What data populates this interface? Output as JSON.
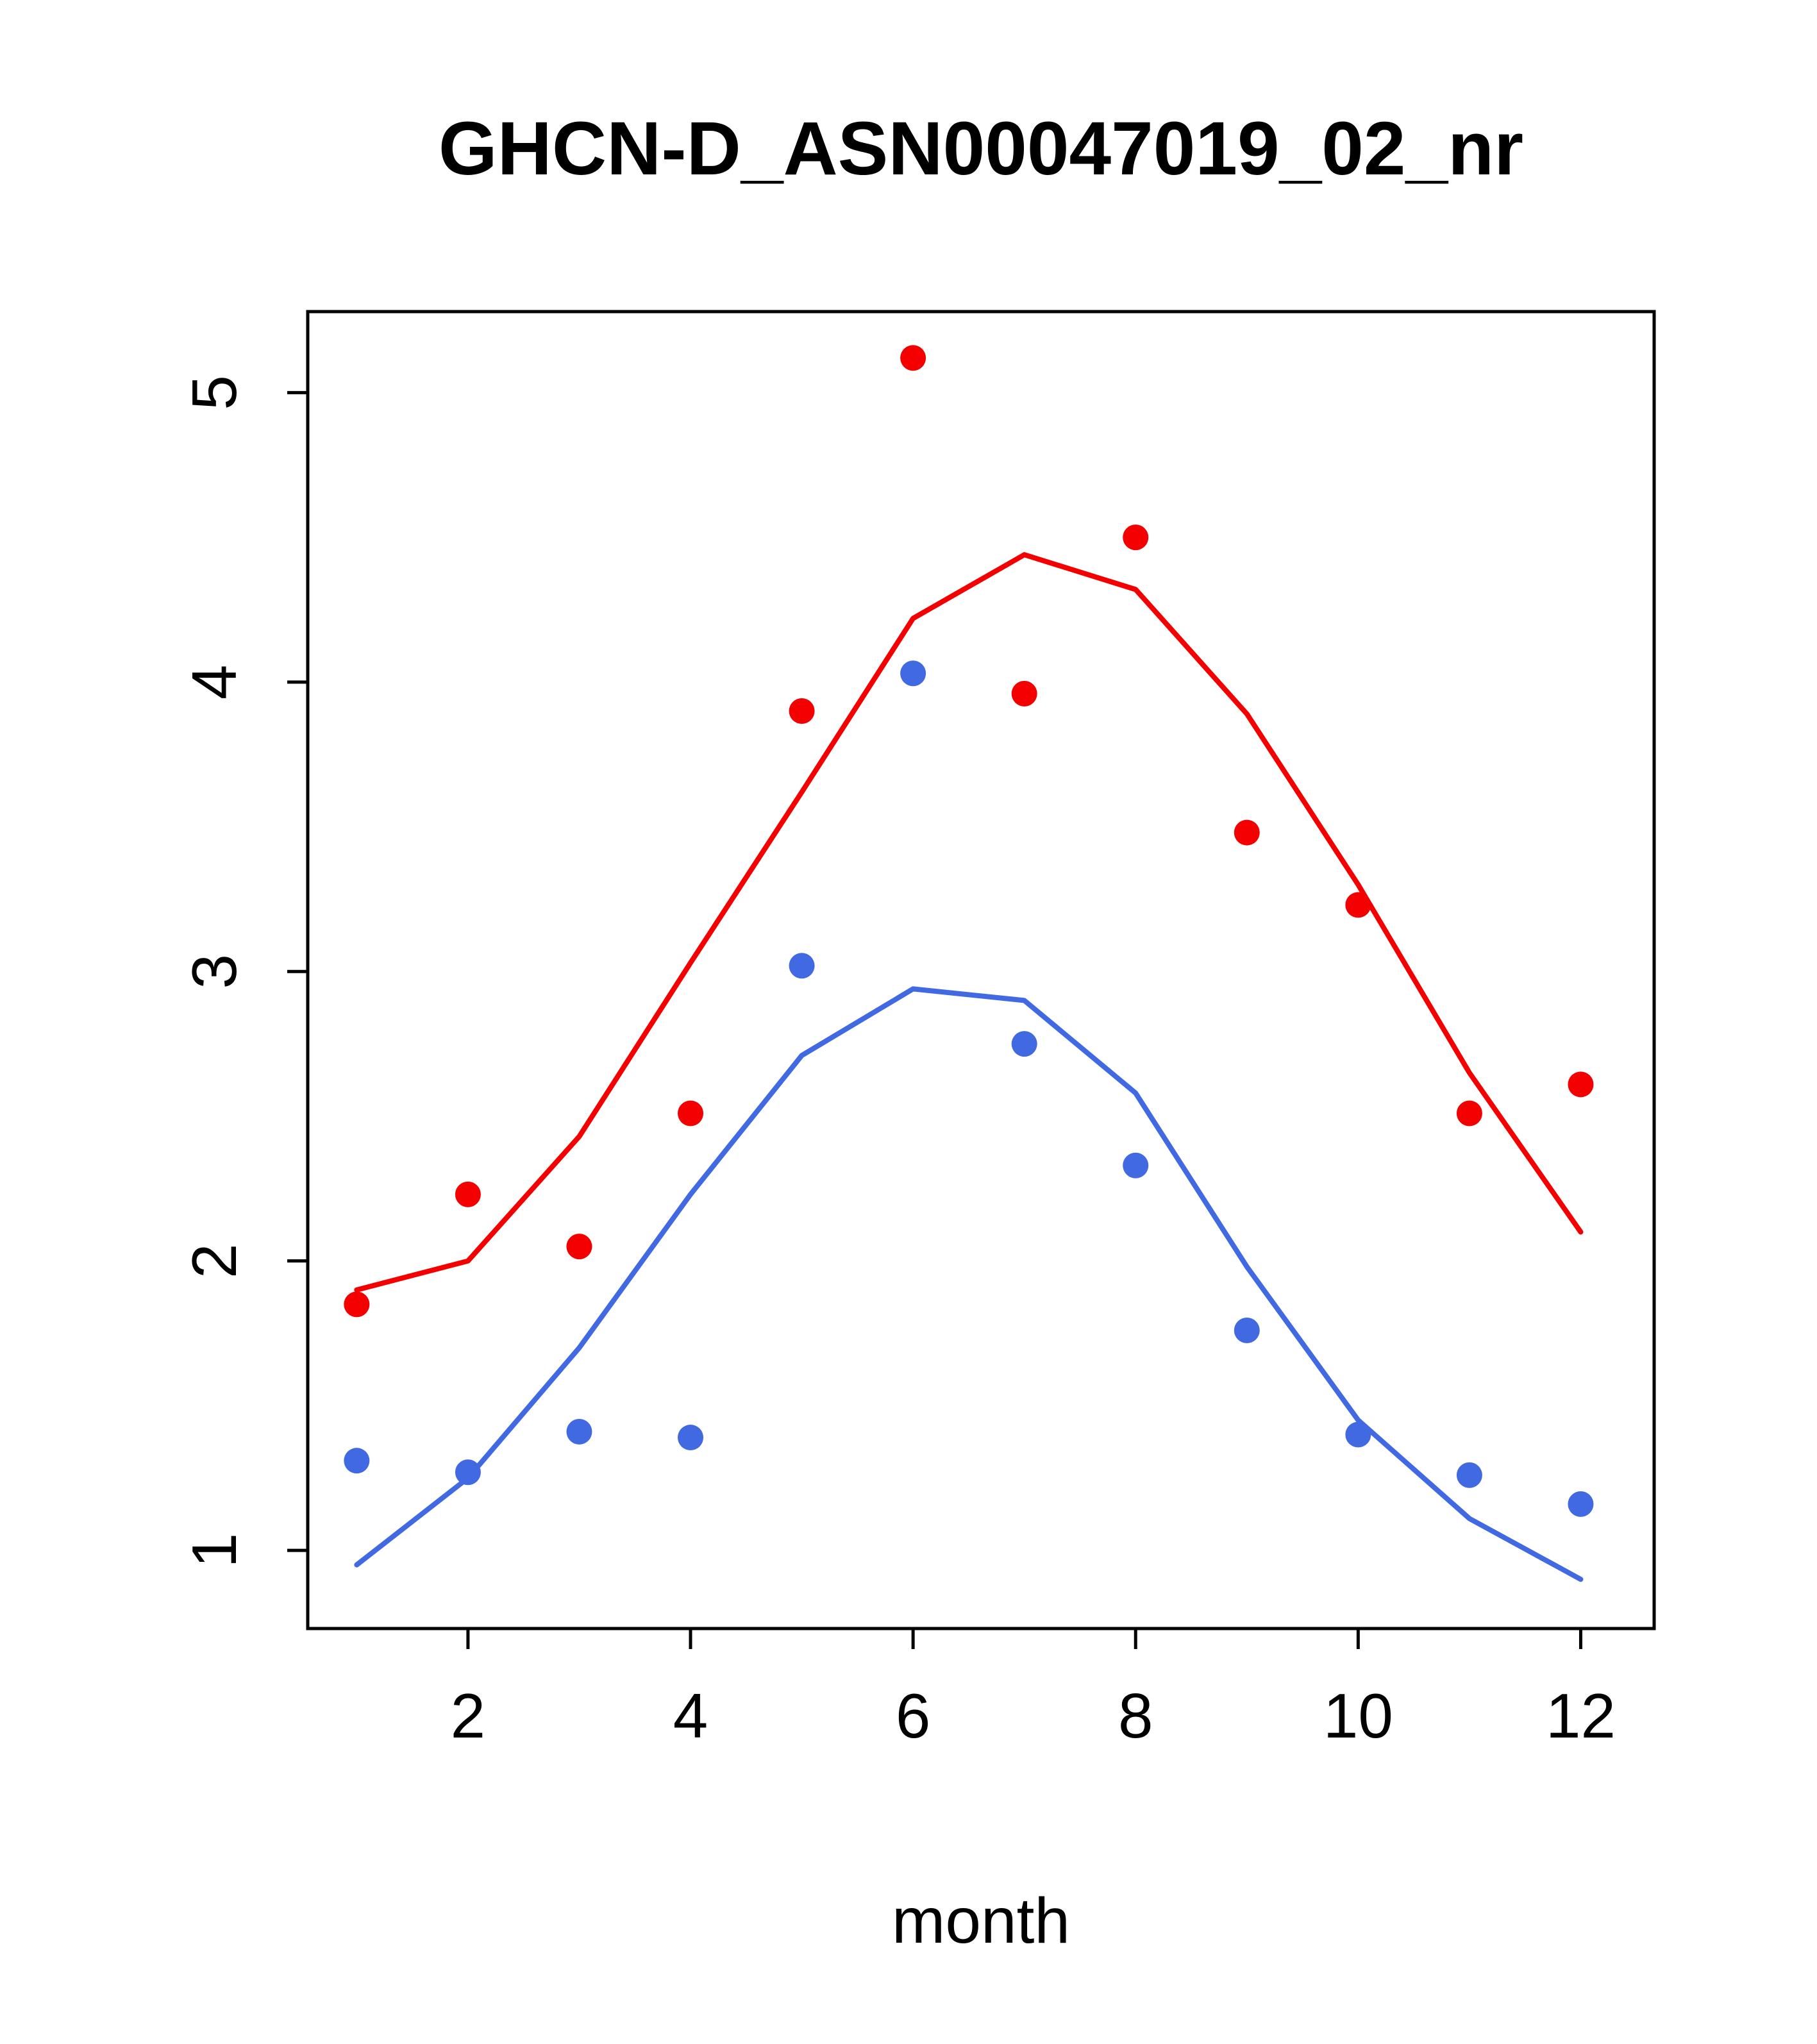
{
  "chart_data": {
    "type": "scatter",
    "title": "GHCN-D_ASN00047019_02_nr",
    "xlabel": "month",
    "ylabel": "",
    "x": [
      1,
      2,
      3,
      4,
      5,
      6,
      7,
      8,
      9,
      10,
      11,
      12
    ],
    "xlim": [
      0.56,
      12.66
    ],
    "ylim": [
      0.73,
      5.28
    ],
    "xticks": [
      2,
      4,
      6,
      8,
      10,
      12
    ],
    "yticks": [
      1,
      2,
      3,
      4,
      5
    ],
    "grid": false,
    "legend": null,
    "colors": {
      "red": "#f40000",
      "blue": "#4169e1",
      "axis": "#000000"
    },
    "series": [
      {
        "name": "red-line-fit",
        "kind": "line",
        "color": "#f40000",
        "values": [
          1.9,
          2.0,
          2.43,
          3.03,
          3.62,
          4.22,
          4.44,
          4.32,
          3.89,
          3.3,
          2.65,
          2.1
        ]
      },
      {
        "name": "blue-line-fit",
        "kind": "line",
        "color": "#4169e1",
        "values": [
          0.95,
          1.25,
          1.7,
          2.23,
          2.71,
          2.94,
          2.9,
          2.58,
          1.98,
          1.45,
          1.11,
          0.9
        ]
      },
      {
        "name": "red-points-obs",
        "kind": "points",
        "color": "#f40000",
        "values": [
          1.85,
          2.23,
          2.05,
          2.51,
          3.9,
          5.12,
          3.96,
          4.5,
          3.48,
          3.23,
          2.51,
          2.61
        ]
      },
      {
        "name": "blue-points-obs",
        "kind": "points",
        "color": "#4169e1",
        "values": [
          1.31,
          1.27,
          1.41,
          1.39,
          3.02,
          4.03,
          2.75,
          2.33,
          1.76,
          1.4,
          1.26,
          1.16
        ]
      }
    ]
  }
}
